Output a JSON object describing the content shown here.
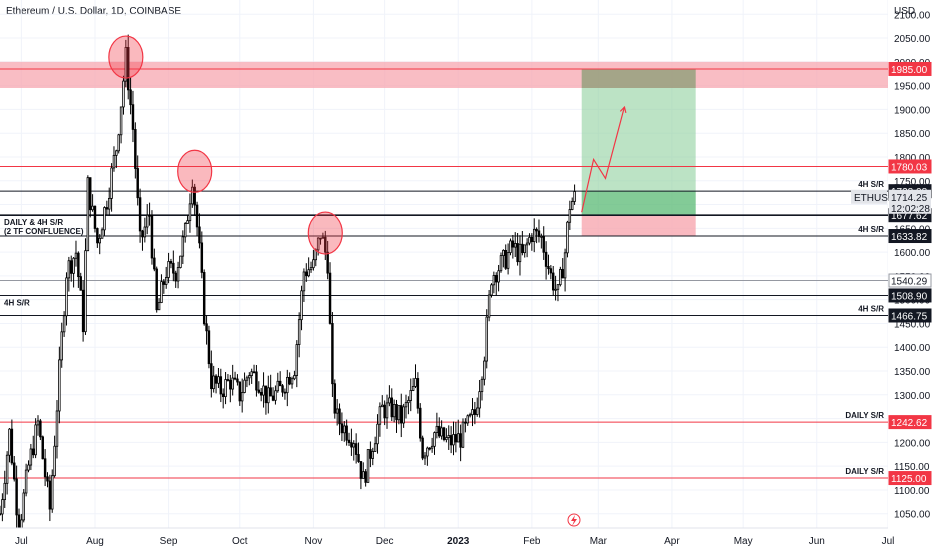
{
  "chart_data": {
    "type": "candlestick",
    "title": "Ethereum / U.S. Dollar, 1D, COINBASE",
    "y_unit": "USD",
    "ylim": [
      1020,
      2130
    ],
    "y_ticks": [
      2100,
      2050,
      2000,
      1950,
      1900,
      1850,
      1800,
      1750,
      1700,
      1650,
      1600,
      1550,
      1500,
      1450,
      1400,
      1350,
      1300,
      1250,
      1200,
      1150,
      1100,
      1050
    ],
    "x_ticks": [
      {
        "label": "Jul",
        "date": "2022-07-01"
      },
      {
        "label": "Aug",
        "date": "2022-08-01"
      },
      {
        "label": "Sep",
        "date": "2022-09-01"
      },
      {
        "label": "Oct",
        "date": "2022-10-01"
      },
      {
        "label": "Nov",
        "date": "2022-11-01"
      },
      {
        "label": "Dec",
        "date": "2022-12-01"
      },
      {
        "label": "2023",
        "date": "2023-01-01"
      },
      {
        "label": "Feb",
        "date": "2023-02-01"
      },
      {
        "label": "Mar",
        "date": "2023-03-01"
      },
      {
        "label": "Apr",
        "date": "2023-04-01"
      },
      {
        "label": "May",
        "date": "2023-05-01"
      },
      {
        "label": "Jun",
        "date": "2023-06-01"
      },
      {
        "label": "Jul",
        "date": "2023-07-01"
      }
    ],
    "x_range": [
      "2022-06-22",
      "2023-07-01"
    ],
    "price_path": [
      [
        "2022-06-22",
        1050
      ],
      [
        "2022-06-26",
        1220
      ],
      [
        "2022-06-30",
        1020
      ],
      [
        "2022-07-04",
        1150
      ],
      [
        "2022-07-08",
        1240
      ],
      [
        "2022-07-13",
        1060
      ],
      [
        "2022-07-17",
        1350
      ],
      [
        "2022-07-20",
        1560
      ],
      [
        "2022-07-24",
        1600
      ],
      [
        "2022-07-27",
        1450
      ],
      [
        "2022-07-29",
        1740
      ],
      [
        "2022-08-02",
        1620
      ],
      [
        "2022-08-06",
        1710
      ],
      [
        "2022-08-10",
        1820
      ],
      [
        "2022-08-14",
        2010
      ],
      [
        "2022-08-17",
        1860
      ],
      [
        "2022-08-20",
        1620
      ],
      [
        "2022-08-24",
        1680
      ],
      [
        "2022-08-27",
        1470
      ],
      [
        "2022-08-31",
        1560
      ],
      [
        "2022-09-04",
        1560
      ],
      [
        "2022-09-08",
        1640
      ],
      [
        "2022-09-11",
        1760
      ],
      [
        "2022-09-14",
        1600
      ],
      [
        "2022-09-16",
        1470
      ],
      [
        "2022-09-19",
        1330
      ],
      [
        "2022-09-23",
        1310
      ],
      [
        "2022-09-27",
        1330
      ],
      [
        "2022-10-01",
        1300
      ],
      [
        "2022-10-05",
        1350
      ],
      [
        "2022-10-09",
        1330
      ],
      [
        "2022-10-13",
        1290
      ],
      [
        "2022-10-18",
        1310
      ],
      [
        "2022-10-24",
        1360
      ],
      [
        "2022-10-28",
        1560
      ],
      [
        "2022-11-01",
        1570
      ],
      [
        "2022-11-04",
        1640
      ],
      [
        "2022-11-07",
        1580
      ],
      [
        "2022-11-09",
        1300
      ],
      [
        "2022-11-11",
        1250
      ],
      [
        "2022-11-14",
        1230
      ],
      [
        "2022-11-18",
        1210
      ],
      [
        "2022-11-22",
        1120
      ],
      [
        "2022-11-26",
        1200
      ],
      [
        "2022-11-30",
        1270
      ],
      [
        "2022-12-04",
        1270
      ],
      [
        "2022-12-08",
        1250
      ],
      [
        "2022-12-14",
        1320
      ],
      [
        "2022-12-17",
        1180
      ],
      [
        "2022-12-22",
        1220
      ],
      [
        "2022-12-28",
        1200
      ],
      [
        "2023-01-02",
        1210
      ],
      [
        "2023-01-08",
        1260
      ],
      [
        "2023-01-12",
        1390
      ],
      [
        "2023-01-15",
        1550
      ],
      [
        "2023-01-20",
        1580
      ],
      [
        "2023-01-24",
        1610
      ],
      [
        "2023-01-28",
        1590
      ],
      [
        "2023-02-01",
        1640
      ],
      [
        "2023-02-05",
        1630
      ],
      [
        "2023-02-09",
        1550
      ],
      [
        "2023-02-12",
        1510
      ],
      [
        "2023-02-15",
        1600
      ],
      [
        "2023-02-17",
        1700
      ],
      [
        "2023-02-19",
        1714
      ]
    ],
    "levels": [
      {
        "price": 1985.0,
        "label": "",
        "tag": "1985.00",
        "color": "#f23645"
      },
      {
        "price": 1780.03,
        "label": "",
        "tag": "1780.03",
        "color": "#f23645"
      },
      {
        "price": 1728.08,
        "label": "4H S/R",
        "tag": "1728.08",
        "color": "#131722"
      },
      {
        "price": 1677.62,
        "label": "DAILY & 4H S/R\n(2 TF CONFLUENCE)",
        "tag": "1677.62",
        "color": "#131722"
      },
      {
        "price": 1633.82,
        "label": "4H S/R",
        "tag": "1633.82",
        "color": "#131722"
      },
      {
        "price": 1540.29,
        "label": "",
        "tag": "1540.29",
        "color": "#9598a1"
      },
      {
        "price": 1508.9,
        "label": "4H S/R",
        "tag": "1508.90",
        "color": "#131722"
      },
      {
        "price": 1466.75,
        "label": "4H S/R",
        "tag": "1466.75",
        "color": "#131722"
      },
      {
        "price": 1242.62,
        "label": "DAILY S/R",
        "tag": "1242.62",
        "color": "#f23645"
      },
      {
        "price": 1125.0,
        "label": "DAILY S/R",
        "tag": "1125.00",
        "color": "#f23645"
      }
    ],
    "current": {
      "symbol": "ETHUSD",
      "price": "1714.25",
      "countdown": "12:02:28"
    },
    "resistance_zone": {
      "from": 1945,
      "to": 2000
    },
    "position": {
      "start": "2023-02-22",
      "end": "2023-04-11",
      "entry": 1677.62,
      "target": 1985.0,
      "stop": 1633.82
    },
    "circles": [
      {
        "date": "2022-08-14",
        "price": 2010
      },
      {
        "date": "2022-09-12",
        "price": 1770
      },
      {
        "date": "2022-11-06",
        "price": 1640
      }
    ],
    "projection": [
      [
        "2023-02-22",
        1684
      ],
      [
        "2023-02-27",
        1795
      ],
      [
        "2023-03-04",
        1755
      ],
      [
        "2023-03-12",
        1905
      ]
    ],
    "grid": true,
    "legend": "none"
  },
  "icons": {
    "flash": "lightning-icon"
  }
}
